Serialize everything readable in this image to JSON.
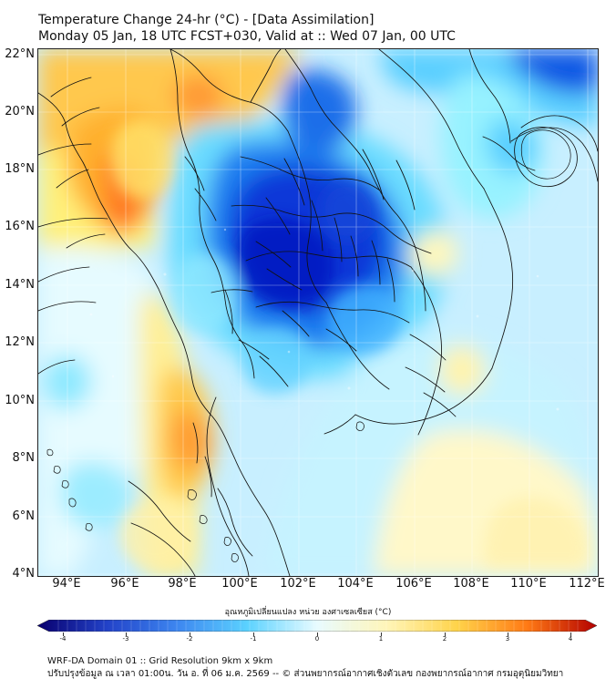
{
  "header": {
    "title": "Temperature Change 24-hr (°C) - [Data Assimilation]",
    "subtitle": "Monday 05 Jan, 18 UTC FCST+030, Valid at :: Wed 07 Jan, 00 UTC"
  },
  "axes": {
    "latitude_labels": [
      "22°N",
      "20°N",
      "18°N",
      "16°N",
      "14°N",
      "12°N",
      "10°N",
      "8°N",
      "6°N",
      "4°N"
    ],
    "longitude_labels": [
      "94°E",
      "96°E",
      "98°E",
      "100°E",
      "102°E",
      "104°E",
      "106°E",
      "108°E",
      "110°E",
      "112°E"
    ]
  },
  "legend": {
    "title": "อุณหภูมิเปลี่ยนแปลง หน่วย องศาเซลเซียส (°C)",
    "tick_labels": [
      "-4",
      "-3",
      "-2",
      "-1",
      "0",
      "1",
      "2",
      "3",
      "4"
    ],
    "color_stops": [
      "#09006e",
      "#2242c8",
      "#3d86f0",
      "#5bd2ff",
      "#e8fbff",
      "#fff5b8",
      "#ffd34a",
      "#ff7a15",
      "#b30000"
    ]
  },
  "footer": {
    "line_1": "WRF-DA Domain 01 :: Grid Resolution 9km x 9km",
    "line_2": "ปรับปรุงข้อมูล ณ เวลา 01:00น. วัน อ. ที่ 06 ม.ค. 2569 -- © ส่วนพยากรณ์อากาศเชิงตัวเลข กองพยากรณ์อากาศ กรมอุตุนิยมวิทยา"
  }
}
